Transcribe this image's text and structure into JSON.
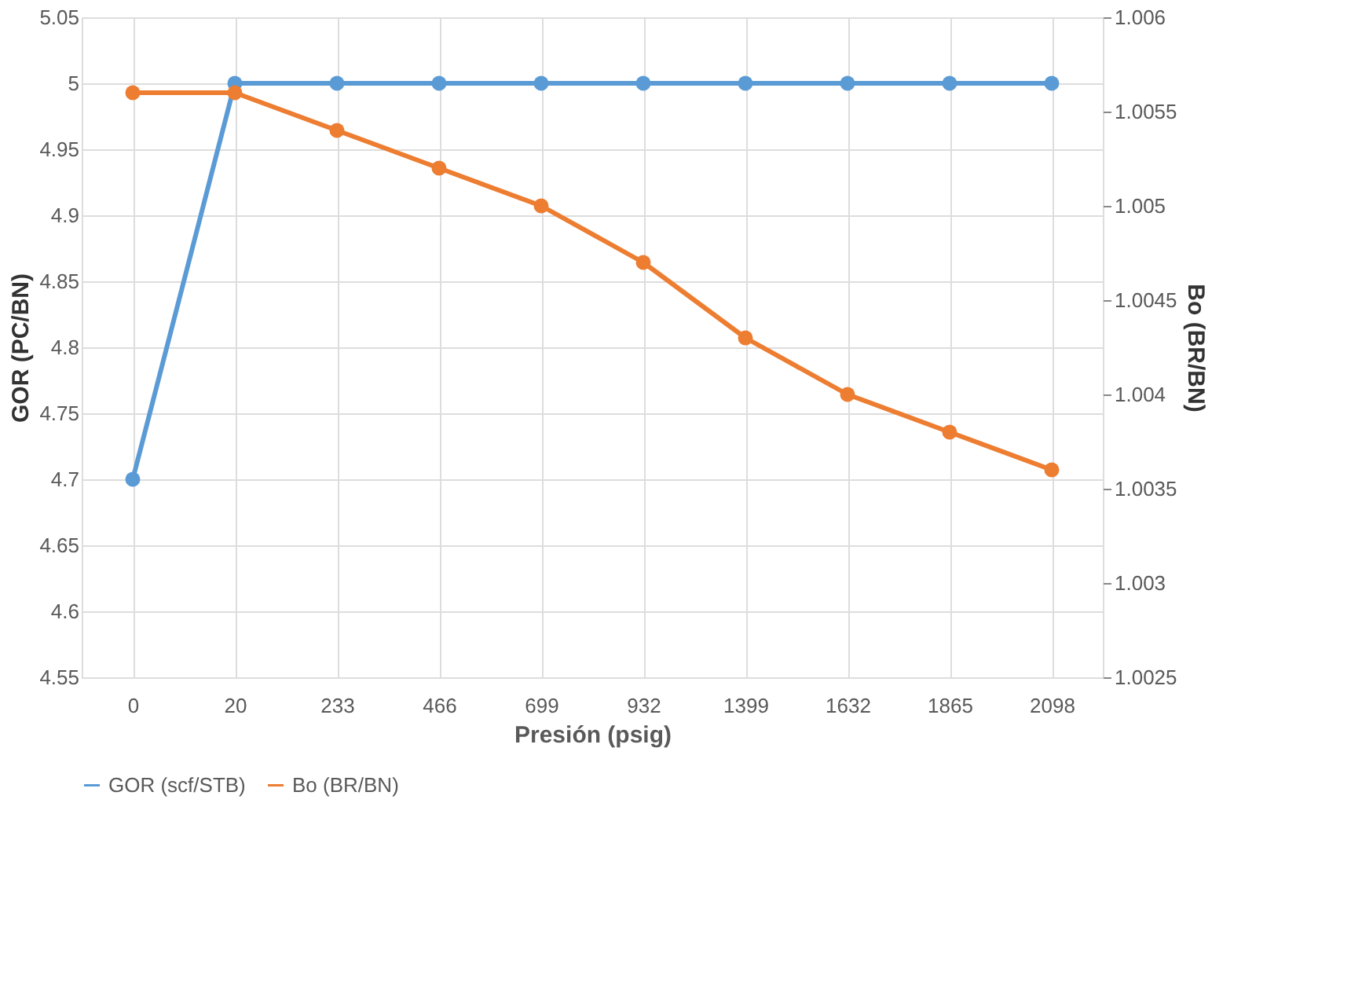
{
  "chart_data": {
    "type": "line",
    "xlabel": "Presión (psig)",
    "ylabel": "GOR (PC/BN)",
    "y2label": "Bo (BR/BN)",
    "categories": [
      "0",
      "20",
      "233",
      "466",
      "699",
      "932",
      "1399",
      "1632",
      "1865",
      "2098"
    ],
    "series": [
      {
        "name": "GOR (scf/STB)",
        "color": "#5b9bd5",
        "values": [
          4.7,
          5,
          5,
          5,
          5,
          5,
          5,
          5,
          5,
          5
        ]
      },
      {
        "name": "Bo (BR/BN)",
        "color": "#ed7d31",
        "axis": "y2",
        "values": [
          1.0056,
          1.0056,
          1.0054,
          1.0052,
          1.005,
          1.0047,
          1.0043,
          1.004,
          1.0038,
          1.0036
        ]
      }
    ],
    "ylim": [
      4.55,
      5.05
    ],
    "yticks": [
      4.55,
      4.6,
      4.65,
      4.7,
      4.75,
      4.8,
      4.85,
      4.9,
      4.95,
      5,
      5.05
    ],
    "y2lim": [
      1.0025,
      1.006
    ],
    "y2ticks": [
      1.0025,
      1.003,
      1.0035,
      1.004,
      1.0045,
      1.005,
      1.0055,
      1.006
    ],
    "grid": true,
    "legend": "bottom",
    "marker": "circle",
    "line_style": "solid"
  }
}
